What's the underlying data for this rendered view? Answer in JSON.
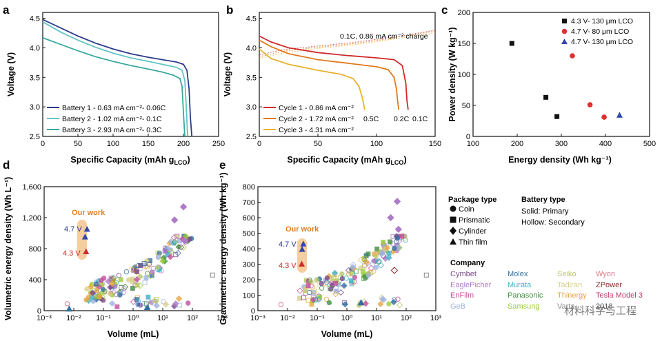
{
  "colors": {
    "b1": "#2b3a8c",
    "b2": "#62c3c3",
    "b3": "#3aa7a0",
    "c1": "#cf2a2a",
    "c2": "#e07a1b",
    "c3": "#e8b12c",
    "sq": "#111111",
    "circ": "#e03030",
    "tri": "#3348a8",
    "work_bg": "#f6cda0",
    "work_text": "#e07e22"
  },
  "chart_data": [
    {
      "id": "a",
      "type": "line",
      "panel_label": "a",
      "xlabel": "Specific Capacity (mAh g",
      "xlabel_sub": "LCO",
      "xlabel_tail": ")",
      "ylabel": "Voltage (V)",
      "xlim": [
        0,
        250
      ],
      "ylim": [
        2.5,
        4.6
      ],
      "xticks": [
        "0",
        "50",
        "100",
        "150",
        "200",
        "250"
      ],
      "yticks": [
        "2.5",
        "3.0",
        "3.5",
        "4.0",
        "4.5"
      ],
      "legend": [
        "Battery 1 - 0.63 mA cm⁻²- 0.06C",
        "Battery 2 - 1.02 mA cm⁻²- 0.1C",
        "Battery 3 - 2.93 mA cm⁻²- 0.3C"
      ],
      "series": [
        {
          "name": "Battery 1",
          "color": "#2b3a8c",
          "x": [
            0,
            25,
            50,
            75,
            100,
            125,
            150,
            170,
            190,
            200,
            205,
            208,
            210,
            212
          ],
          "y": [
            4.48,
            4.34,
            4.2,
            4.08,
            3.98,
            3.9,
            3.84,
            3.8,
            3.76,
            3.72,
            3.62,
            3.3,
            2.8,
            2.5
          ]
        },
        {
          "name": "Battery 2",
          "color": "#62c3c3",
          "x": [
            0,
            25,
            50,
            75,
            100,
            125,
            150,
            170,
            190,
            198,
            202,
            204,
            206
          ],
          "y": [
            4.44,
            4.27,
            4.13,
            4.01,
            3.91,
            3.83,
            3.77,
            3.72,
            3.67,
            3.62,
            3.45,
            3.0,
            2.5
          ]
        },
        {
          "name": "Battery 3",
          "color": "#3aa7a0",
          "x": [
            0,
            25,
            50,
            75,
            100,
            125,
            150,
            170,
            185,
            195,
            198,
            200,
            202
          ],
          "y": [
            4.17,
            4.06,
            3.95,
            3.85,
            3.77,
            3.7,
            3.64,
            3.59,
            3.54,
            3.48,
            3.35,
            2.9,
            2.5
          ]
        }
      ]
    },
    {
      "id": "b",
      "type": "line",
      "panel_label": "b",
      "xlabel": "Specific Capacity (mAh g",
      "xlabel_sub": "LCO",
      "xlabel_tail": ")",
      "ylabel": "Voltage (V)",
      "xlim": [
        0,
        150
      ],
      "ylim": [
        2.5,
        4.6
      ],
      "xticks": [
        "0",
        "50",
        "100",
        "150"
      ],
      "yticks": [
        "2.5",
        "3.0",
        "3.5",
        "4.0",
        "4.5"
      ],
      "annotation": "0.1C, 0.86 mA cm⁻² charge",
      "rate_labels": [
        "0.5C",
        "0.2C",
        "0.1C"
      ],
      "legend": [
        "Cycle 1 - 0.86 mA cm⁻²",
        "Cycle 2 - 1.72 mA cm⁻²",
        "Cycle 3 - 4.31 mA cm⁻²"
      ],
      "series": [
        {
          "name": "Cycle 1",
          "color": "#cf2a2a",
          "x": [
            0,
            10,
            25,
            50,
            75,
            100,
            115,
            122,
            125,
            126,
            127
          ],
          "y": [
            4.2,
            4.1,
            4.0,
            3.92,
            3.87,
            3.83,
            3.8,
            3.7,
            3.4,
            3.1,
            2.95
          ]
        },
        {
          "name": "Cycle 2",
          "color": "#e07a1b",
          "x": [
            0,
            10,
            25,
            50,
            75,
            100,
            110,
            115,
            117,
            118,
            119
          ],
          "y": [
            4.13,
            4.02,
            3.9,
            3.8,
            3.74,
            3.68,
            3.63,
            3.5,
            3.3,
            3.1,
            2.95
          ]
        },
        {
          "name": "Cycle 3",
          "color": "#e8b12c",
          "x": [
            0,
            10,
            25,
            50,
            70,
            80,
            85,
            88,
            89,
            90
          ],
          "y": [
            3.98,
            3.82,
            3.72,
            3.62,
            3.55,
            3.48,
            3.35,
            3.15,
            3.05,
            2.95
          ]
        }
      ],
      "charge_series": [
        {
          "color": "#cf2a2a",
          "x": [
            0,
            20,
            50,
            80,
            110,
            127,
            150
          ],
          "y": [
            3.88,
            3.97,
            4.03,
            4.09,
            4.17,
            4.22,
            4.3
          ]
        },
        {
          "color": "#e07a1b",
          "x": [
            0,
            20,
            50,
            80,
            110,
            119,
            150
          ],
          "y": [
            3.85,
            3.94,
            4.01,
            4.07,
            4.15,
            4.19,
            4.28
          ]
        },
        {
          "color": "#e8b12c",
          "x": [
            0,
            20,
            50,
            80,
            90,
            120,
            150
          ],
          "y": [
            3.82,
            3.91,
            3.99,
            4.05,
            4.08,
            4.16,
            4.25
          ]
        }
      ]
    },
    {
      "id": "c",
      "type": "scatter",
      "panel_label": "c",
      "xlabel": "Energy density (Wh kg⁻¹)",
      "ylabel": "Power density (W kg⁻¹)",
      "xlim": [
        100,
        500
      ],
      "ylim": [
        0,
        200
      ],
      "xticks": [
        "100",
        "200",
        "300",
        "400",
        "500"
      ],
      "yticks": [
        "0",
        "50",
        "100",
        "150",
        "200"
      ],
      "legend": [
        "4.3 V- 130 μm LCO",
        "4.7 V- 80 μm LCO",
        "4.7 V- 130 μm LCO"
      ],
      "series": [
        {
          "name": "4.3 V- 130 μm LCO",
          "marker": "square",
          "color": "#111111",
          "points": [
            [
              188,
              150
            ],
            [
              265,
              63
            ],
            [
              290,
              32
            ]
          ]
        },
        {
          "name": "4.7 V- 80 μm LCO",
          "marker": "circle",
          "color": "#e03030",
          "points": [
            [
              325,
              130
            ],
            [
              365,
              51
            ],
            [
              397,
              31
            ]
          ]
        },
        {
          "name": "4.7 V- 130 μm LCO",
          "marker": "triangle",
          "color": "#3348a8",
          "points": [
            [
              432,
              34
            ]
          ]
        }
      ]
    },
    {
      "id": "d",
      "type": "scatter",
      "panel_label": "d",
      "xlabel": "Volume (mL)",
      "ylabel": "Volumetric energy density (Wh L⁻¹)",
      "xscale": "log",
      "xlim_exp": [
        -3,
        3
      ],
      "ylim": [
        0,
        1600
      ],
      "xticks": [
        "10⁻³",
        "10⁻²",
        "10⁻¹",
        "10⁰",
        "10¹",
        "10²",
        "10³"
      ],
      "yticks": [
        "0",
        "400",
        "800",
        "1,200",
        "1,600"
      ],
      "work_label": "Our work",
      "work_v1": "4.7 V",
      "work_v2": "4.3 V",
      "work_points": [
        {
          "x": 0.028,
          "y": 1050,
          "color": "#3348a8"
        },
        {
          "x": 0.024,
          "y": 950,
          "color": "#3348a8"
        },
        {
          "x": 0.026,
          "y": 760,
          "color": "#cf2a2a"
        }
      ]
    },
    {
      "id": "e",
      "type": "scatter",
      "panel_label": "e",
      "xlabel": "Volume (mL)",
      "ylabel": "Gravimetric energy density (Wh kg⁻¹)",
      "xscale": "log",
      "xlim_exp": [
        -3,
        3
      ],
      "ylim": [
        0,
        800
      ],
      "xticks": [
        "10⁻³",
        "10⁻²",
        "10⁻¹",
        "10⁰",
        "10¹",
        "10²",
        "10³"
      ],
      "yticks": [
        "0",
        "100",
        "200",
        "300",
        "400",
        "500",
        "600",
        "700",
        "800"
      ],
      "work_label": "Our work",
      "work_v1": "4.7 V",
      "work_v2": "4.3 V",
      "work_points": [
        {
          "x": 0.034,
          "y": 430,
          "color": "#3348a8"
        },
        {
          "x": 0.031,
          "y": 395,
          "color": "#3348a8"
        },
        {
          "x": 0.03,
          "y": 300,
          "color": "#cf2a2a"
        }
      ]
    }
  ],
  "legend_panel": {
    "package_title": "Package type",
    "package_items": [
      "Coin",
      "Prismatic",
      "Cylinder",
      "Thin film"
    ],
    "battery_title": "Battery type",
    "battery_items": [
      "Solid: Primary",
      "Hollow: Secondary"
    ],
    "company_title": "Company",
    "companies": [
      {
        "name": "Cymbet",
        "color": "#7a4a8c"
      },
      {
        "name": "EaglePicher",
        "color": "#b07ac8"
      },
      {
        "name": "EnFilm",
        "color": "#c14f9a"
      },
      {
        "name": "GeB",
        "color": "#9fb3e0"
      },
      {
        "name": "Molex",
        "color": "#2f6e9e"
      },
      {
        "name": "Murata",
        "color": "#3fb1c9"
      },
      {
        "name": "Panasonic",
        "color": "#3f8f3f"
      },
      {
        "name": "Samsung",
        "color": "#9ccc3c"
      },
      {
        "name": "Seiko",
        "color": "#b8c96a"
      },
      {
        "name": "Tadiran",
        "color": "#d8d08a"
      },
      {
        "name": "Thinergy",
        "color": "#e8a640"
      },
      {
        "name": "Varta",
        "color": "#8a8a8a"
      },
      {
        "name": "Wyon",
        "color": "#e07a8a"
      },
      {
        "name": "ZPower",
        "color": "#8b2a2a"
      },
      {
        "name": "Tesla Model 3",
        "color": "#c63b6a"
      },
      {
        "name": "2018",
        "color": "#555555"
      }
    ]
  },
  "watermark": "材料科学与工程"
}
